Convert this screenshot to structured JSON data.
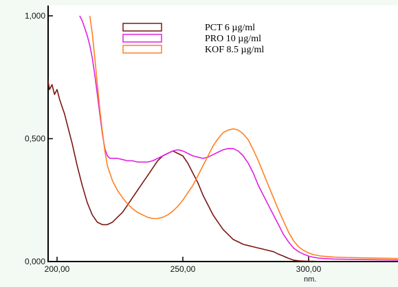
{
  "chart_data": {
    "type": "line",
    "xlabel": "nm.",
    "ylabel": "",
    "xlim": [
      193,
      338
    ],
    "ylim": [
      0,
      1.0
    ],
    "x_ticks": [
      200,
      250,
      300
    ],
    "x_tick_labels": [
      "200,00",
      "250,00",
      "300,00"
    ],
    "y_ticks": [
      0,
      0.5,
      1.0
    ],
    "y_tick_labels": [
      "0,000",
      "0,500",
      "1,000"
    ],
    "legend_position": "top-center",
    "grid": false,
    "series": [
      {
        "name": "PCT 6 µg/ml",
        "color": "#7a1515",
        "x": [
          193,
          194,
          195,
          196,
          197,
          198,
          199,
          200,
          201,
          202,
          203,
          204,
          206,
          208,
          210,
          212,
          214,
          216,
          218,
          220,
          222,
          224,
          226,
          228,
          230,
          232,
          234,
          236,
          238,
          240,
          242,
          244,
          246,
          248,
          250,
          252,
          254,
          256,
          258,
          260,
          262,
          264,
          266,
          268,
          270,
          272,
          274,
          276,
          278,
          280,
          282,
          284,
          286,
          288,
          290,
          292,
          294,
          296,
          298,
          300,
          302,
          305,
          310,
          320,
          338
        ],
        "y": [
          0.82,
          0.78,
          0.73,
          0.76,
          0.7,
          0.72,
          0.68,
          0.7,
          0.66,
          0.63,
          0.6,
          0.56,
          0.48,
          0.39,
          0.31,
          0.24,
          0.19,
          0.16,
          0.15,
          0.15,
          0.16,
          0.18,
          0.2,
          0.23,
          0.26,
          0.29,
          0.32,
          0.35,
          0.38,
          0.41,
          0.43,
          0.44,
          0.45,
          0.44,
          0.43,
          0.4,
          0.36,
          0.32,
          0.27,
          0.23,
          0.19,
          0.16,
          0.13,
          0.11,
          0.09,
          0.08,
          0.07,
          0.065,
          0.06,
          0.055,
          0.05,
          0.045,
          0.04,
          0.03,
          0.022,
          0.013,
          0.006,
          0.003,
          0.002,
          0.001,
          0.001,
          0.0,
          0.0,
          0.0,
          0.0
        ]
      },
      {
        "name": "PRO 10 µg/ml",
        "color": "#e020e0",
        "x": [
          209,
          210,
          211,
          212,
          213,
          214,
          215,
          216,
          217,
          218,
          219,
          220,
          221,
          222,
          224,
          226,
          228,
          230,
          232,
          234,
          236,
          238,
          240,
          242,
          244,
          246,
          248,
          250,
          252,
          254,
          256,
          258,
          260,
          262,
          264,
          266,
          268,
          270,
          272,
          274,
          276,
          278,
          280,
          282,
          284,
          286,
          288,
          290,
          292,
          294,
          296,
          298,
          300,
          302,
          304,
          306,
          310,
          320,
          338
        ],
        "y": [
          1.0,
          0.98,
          0.95,
          0.92,
          0.88,
          0.83,
          0.76,
          0.68,
          0.6,
          0.52,
          0.46,
          0.43,
          0.42,
          0.42,
          0.42,
          0.415,
          0.41,
          0.41,
          0.405,
          0.405,
          0.405,
          0.41,
          0.42,
          0.43,
          0.44,
          0.45,
          0.455,
          0.45,
          0.44,
          0.43,
          0.425,
          0.42,
          0.425,
          0.435,
          0.445,
          0.455,
          0.46,
          0.46,
          0.45,
          0.43,
          0.4,
          0.36,
          0.31,
          0.27,
          0.23,
          0.19,
          0.15,
          0.11,
          0.08,
          0.055,
          0.04,
          0.03,
          0.022,
          0.017,
          0.014,
          0.012,
          0.01,
          0.008,
          0.006
        ]
      },
      {
        "name": "KOF 8.5 µg/ml",
        "color": "#ff8020",
        "x": [
          213,
          214,
          215,
          216,
          217,
          218,
          219,
          220,
          222,
          224,
          226,
          228,
          230,
          232,
          234,
          236,
          238,
          240,
          242,
          244,
          246,
          248,
          250,
          252,
          254,
          256,
          258,
          260,
          262,
          264,
          266,
          268,
          270,
          272,
          274,
          276,
          278,
          280,
          282,
          284,
          286,
          288,
          290,
          292,
          294,
          296,
          298,
          300,
          302,
          305,
          310,
          320,
          338
        ],
        "y": [
          1.0,
          0.93,
          0.83,
          0.72,
          0.62,
          0.53,
          0.45,
          0.39,
          0.33,
          0.29,
          0.26,
          0.235,
          0.215,
          0.2,
          0.19,
          0.18,
          0.175,
          0.175,
          0.18,
          0.19,
          0.205,
          0.225,
          0.25,
          0.28,
          0.31,
          0.35,
          0.39,
          0.43,
          0.47,
          0.5,
          0.525,
          0.535,
          0.54,
          0.535,
          0.52,
          0.495,
          0.455,
          0.41,
          0.36,
          0.31,
          0.26,
          0.21,
          0.165,
          0.12,
          0.085,
          0.06,
          0.045,
          0.035,
          0.028,
          0.022,
          0.018,
          0.015,
          0.012
        ]
      }
    ]
  }
}
